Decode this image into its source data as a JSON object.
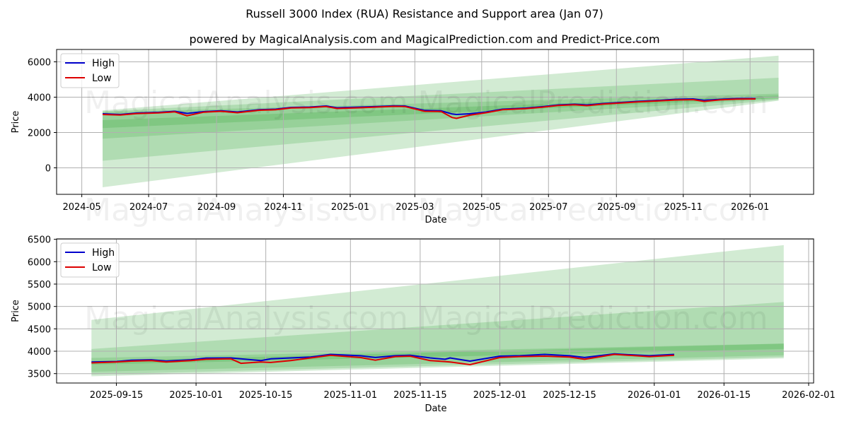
{
  "title": "Russell 3000 Index (RUA) Resistance and Support area (Jan 07)",
  "subtitle": "powered by MagicalAnalysis.com and MagicalPrediction.com and Predict-Price.com",
  "watermarks": [
    "MagicalAnalysis.com",
    "MagicalPrediction.com"
  ],
  "colors": {
    "high": "#0000cc",
    "low": "#dd0000",
    "band": "#4caf50",
    "grid": "#b0b0b0"
  },
  "chart_data": [
    {
      "type": "line",
      "title": "Russell 3000 Index (RUA) Resistance and Support area (Jan 07)",
      "xlabel": "Date",
      "ylabel": "Price",
      "ylim": [
        -1500,
        6700
      ],
      "yticks": [
        0,
        2000,
        4000,
        6000
      ],
      "xticks": [
        "2024-05",
        "2024-07",
        "2024-09",
        "2024-11",
        "2025-01",
        "2025-03",
        "2025-05",
        "2025-07",
        "2025-09",
        "2025-11",
        "2026-01"
      ],
      "grid": true,
      "legend": {
        "position": "upper left",
        "entries": [
          "High",
          "Low"
        ]
      },
      "series": [
        {
          "name": "High",
          "x": [
            "2024-05-20",
            "2024-06-05",
            "2024-06-20",
            "2024-07-10",
            "2024-07-25",
            "2024-08-05",
            "2024-08-20",
            "2024-09-05",
            "2024-09-20",
            "2024-10-10",
            "2024-10-25",
            "2024-11-08",
            "2024-11-25",
            "2024-12-10",
            "2024-12-20",
            "2025-01-10",
            "2025-01-25",
            "2025-02-10",
            "2025-02-20",
            "2025-03-10",
            "2025-03-25",
            "2025-04-04",
            "2025-04-08",
            "2025-04-20",
            "2025-05-05",
            "2025-05-20",
            "2025-06-10",
            "2025-06-25",
            "2025-07-10",
            "2025-07-25",
            "2025-08-05",
            "2025-08-20",
            "2025-09-05",
            "2025-09-20",
            "2025-10-10",
            "2025-10-25",
            "2025-11-10",
            "2025-11-20",
            "2025-12-05",
            "2025-12-20",
            "2026-01-06"
          ],
          "values": [
            3060,
            3020,
            3100,
            3140,
            3200,
            3080,
            3180,
            3230,
            3160,
            3290,
            3320,
            3420,
            3440,
            3500,
            3400,
            3440,
            3470,
            3510,
            3500,
            3250,
            3230,
            3050,
            3020,
            3060,
            3160,
            3320,
            3380,
            3460,
            3560,
            3600,
            3560,
            3640,
            3700,
            3760,
            3820,
            3880,
            3900,
            3820,
            3880,
            3920,
            3920
          ]
        },
        {
          "name": "Low",
          "x": [
            "2024-05-20",
            "2024-06-05",
            "2024-06-20",
            "2024-07-10",
            "2024-07-25",
            "2024-08-05",
            "2024-08-20",
            "2024-09-05",
            "2024-09-20",
            "2024-10-10",
            "2024-10-25",
            "2024-11-08",
            "2024-11-25",
            "2024-12-10",
            "2024-12-20",
            "2025-01-10",
            "2025-01-25",
            "2025-02-10",
            "2025-02-20",
            "2025-03-10",
            "2025-03-25",
            "2025-04-04",
            "2025-04-08",
            "2025-04-20",
            "2025-05-05",
            "2025-05-20",
            "2025-06-10",
            "2025-06-25",
            "2025-07-10",
            "2025-07-25",
            "2025-08-05",
            "2025-08-20",
            "2025-09-05",
            "2025-09-20",
            "2025-10-10",
            "2025-10-25",
            "2025-11-10",
            "2025-11-20",
            "2025-12-05",
            "2025-12-20",
            "2026-01-06"
          ],
          "values": [
            3020,
            2990,
            3070,
            3110,
            3170,
            2950,
            3150,
            3200,
            3120,
            3260,
            3290,
            3390,
            3410,
            3470,
            3360,
            3400,
            3440,
            3480,
            3470,
            3200,
            3190,
            2850,
            2800,
            2980,
            3120,
            3290,
            3350,
            3430,
            3530,
            3570,
            3520,
            3610,
            3670,
            3730,
            3790,
            3840,
            3860,
            3760,
            3850,
            3890,
            3900
          ]
        }
      ],
      "bands": [
        {
          "x_start": "2024-05-20",
          "x_end": "2026-01-27",
          "lower_start": -1100,
          "lower_end": 3800,
          "upper_start": 3250,
          "upper_end": 6350,
          "opacity": 0.25
        },
        {
          "x_start": "2024-05-20",
          "x_end": "2026-01-27",
          "lower_start": 400,
          "lower_end": 3850,
          "upper_start": 3200,
          "upper_end": 5100,
          "opacity": 0.25
        },
        {
          "x_start": "2024-05-20",
          "x_end": "2026-01-27",
          "lower_start": 1650,
          "lower_end": 3900,
          "upper_start": 3150,
          "upper_end": 4200,
          "opacity": 0.25
        },
        {
          "x_start": "2024-05-20",
          "x_end": "2026-01-27",
          "lower_start": 2250,
          "lower_end": 3950,
          "upper_start": 2700,
          "upper_end": 4100,
          "opacity": 0.3
        }
      ]
    },
    {
      "type": "line",
      "xlabel": "Date",
      "ylabel": "Price",
      "ylim": [
        3290,
        6510
      ],
      "yticks": [
        3500,
        4000,
        4500,
        5000,
        5500,
        6000,
        6500
      ],
      "xticks": [
        "2025-09-15",
        "2025-10-01",
        "2025-10-15",
        "2025-11-01",
        "2025-11-15",
        "2025-12-01",
        "2025-12-15",
        "2026-01-01",
        "2026-01-15",
        "2026-02-01"
      ],
      "grid": true,
      "legend": {
        "position": "upper left",
        "entries": [
          "High",
          "Low"
        ]
      },
      "series": [
        {
          "name": "High",
          "x": [
            "2025-09-10",
            "2025-09-15",
            "2025-09-18",
            "2025-09-22",
            "2025-09-25",
            "2025-09-30",
            "2025-10-03",
            "2025-10-08",
            "2025-10-10",
            "2025-10-14",
            "2025-10-16",
            "2025-10-20",
            "2025-10-24",
            "2025-10-28",
            "2025-11-03",
            "2025-11-06",
            "2025-11-10",
            "2025-11-13",
            "2025-11-17",
            "2025-11-20",
            "2025-11-21",
            "2025-11-25",
            "2025-12-01",
            "2025-12-05",
            "2025-12-10",
            "2025-12-15",
            "2025-12-18",
            "2025-12-24",
            "2025-12-31",
            "2026-01-05"
          ],
          "values": [
            3760,
            3770,
            3800,
            3810,
            3780,
            3810,
            3845,
            3850,
            3830,
            3790,
            3830,
            3850,
            3870,
            3930,
            3900,
            3860,
            3900,
            3910,
            3850,
            3820,
            3850,
            3780,
            3890,
            3900,
            3930,
            3900,
            3860,
            3940,
            3900,
            3930
          ]
        },
        {
          "name": "Low",
          "x": [
            "2025-09-10",
            "2025-09-15",
            "2025-09-18",
            "2025-09-22",
            "2025-09-25",
            "2025-09-30",
            "2025-10-03",
            "2025-10-08",
            "2025-10-10",
            "2025-10-14",
            "2025-10-16",
            "2025-10-20",
            "2025-10-24",
            "2025-10-28",
            "2025-11-03",
            "2025-11-06",
            "2025-11-10",
            "2025-11-13",
            "2025-11-17",
            "2025-11-20",
            "2025-11-21",
            "2025-11-25",
            "2025-12-01",
            "2025-12-05",
            "2025-12-10",
            "2025-12-15",
            "2025-12-18",
            "2025-12-24",
            "2025-12-31",
            "2026-01-05"
          ],
          "values": [
            3740,
            3760,
            3780,
            3790,
            3760,
            3790,
            3820,
            3830,
            3730,
            3760,
            3750,
            3790,
            3850,
            3910,
            3860,
            3800,
            3880,
            3890,
            3790,
            3770,
            3760,
            3700,
            3860,
            3880,
            3890,
            3870,
            3820,
            3930,
            3880,
            3910
          ]
        }
      ],
      "bands": [
        {
          "x_start": "2025-09-10",
          "x_end": "2026-01-27",
          "lower_start": 3440,
          "lower_end": 3840,
          "upper_start": 4700,
          "upper_end": 6370,
          "opacity": 0.25
        },
        {
          "x_start": "2025-09-10",
          "x_end": "2026-01-27",
          "lower_start": 3480,
          "lower_end": 3870,
          "upper_start": 4050,
          "upper_end": 5100,
          "opacity": 0.25
        },
        {
          "x_start": "2025-09-10",
          "x_end": "2026-01-27",
          "lower_start": 3540,
          "lower_end": 3910,
          "upper_start": 3850,
          "upper_end": 4170,
          "opacity": 0.25
        },
        {
          "x_start": "2025-09-10",
          "x_end": "2026-01-27",
          "lower_start": 3700,
          "lower_end": 4050,
          "upper_start": 3780,
          "upper_end": 4170,
          "opacity": 0.3
        }
      ]
    }
  ]
}
